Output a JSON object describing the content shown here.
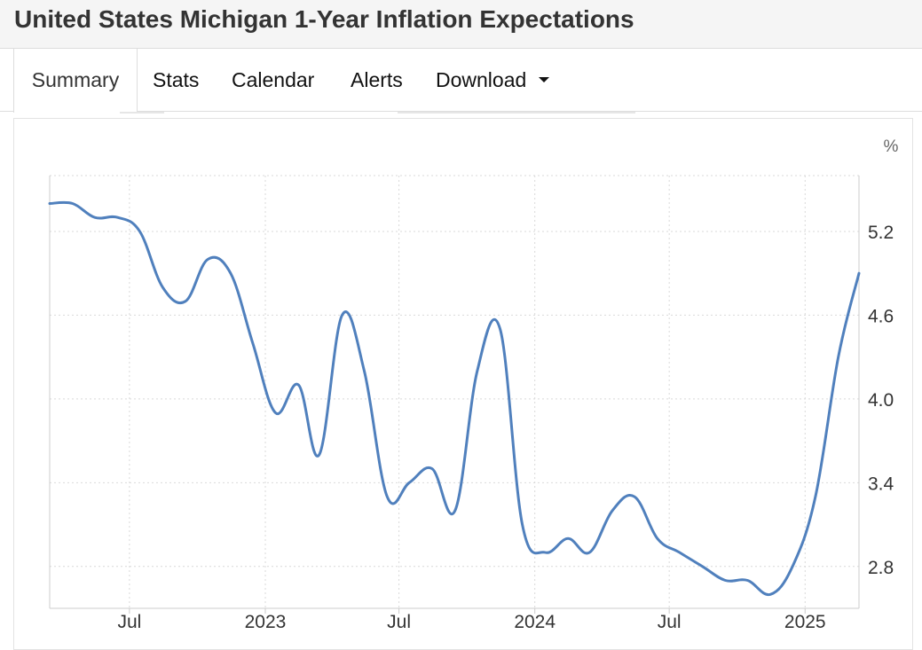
{
  "header": {
    "title": "United States Michigan 1-Year Inflation Expectations"
  },
  "tabs": [
    {
      "label": "Summary",
      "active": true
    },
    {
      "label": "Stats"
    },
    {
      "label": "Calendar"
    },
    {
      "label": "Alerts"
    },
    {
      "label": "Download",
      "dropdown": true
    }
  ],
  "colors": {
    "line": "#5080bd",
    "grid": "#d9d9d9",
    "axis": "#cccccc"
  },
  "chart_data": {
    "type": "line",
    "title": "",
    "xlabel": "",
    "ylabel": "",
    "unit": "%",
    "y_axis_position": "right",
    "ylim": [
      2.5,
      5.6
    ],
    "xlim": [
      "2022-03-15",
      "2025-03-15"
    ],
    "yticks": [
      "2.8",
      "3.4",
      "4.0",
      "4.6",
      "5.2"
    ],
    "xticks": [
      {
        "label": "Jul",
        "date": "2022-07-01"
      },
      {
        "label": "2023",
        "date": "2023-01-01"
      },
      {
        "label": "Jul",
        "date": "2023-07-01"
      },
      {
        "label": "2024",
        "date": "2024-01-01"
      },
      {
        "label": "Jul",
        "date": "2024-07-01"
      },
      {
        "label": "2025",
        "date": "2025-01-01"
      }
    ],
    "grid": true,
    "series": [
      {
        "values": [
          {
            "x": "2022-03-15",
            "y": 5.4
          },
          {
            "x": "2022-04-15",
            "y": 5.4
          },
          {
            "x": "2022-05-15",
            "y": 5.3
          },
          {
            "x": "2022-06-15",
            "y": 5.3
          },
          {
            "x": "2022-07-15",
            "y": 5.2
          },
          {
            "x": "2022-08-15",
            "y": 4.8
          },
          {
            "x": "2022-09-15",
            "y": 4.7
          },
          {
            "x": "2022-10-15",
            "y": 5.0
          },
          {
            "x": "2022-11-15",
            "y": 4.9
          },
          {
            "x": "2022-12-15",
            "y": 4.4
          },
          {
            "x": "2023-01-15",
            "y": 3.9
          },
          {
            "x": "2023-02-15",
            "y": 4.1
          },
          {
            "x": "2023-03-15",
            "y": 3.6
          },
          {
            "x": "2023-04-15",
            "y": 4.6
          },
          {
            "x": "2023-05-15",
            "y": 4.2
          },
          {
            "x": "2023-06-15",
            "y": 3.3
          },
          {
            "x": "2023-07-15",
            "y": 3.4
          },
          {
            "x": "2023-08-15",
            "y": 3.5
          },
          {
            "x": "2023-09-15",
            "y": 3.2
          },
          {
            "x": "2023-10-15",
            "y": 4.2
          },
          {
            "x": "2023-11-15",
            "y": 4.5
          },
          {
            "x": "2023-12-15",
            "y": 3.1
          },
          {
            "x": "2024-01-15",
            "y": 2.9
          },
          {
            "x": "2024-02-15",
            "y": 3.0
          },
          {
            "x": "2024-03-15",
            "y": 2.9
          },
          {
            "x": "2024-04-15",
            "y": 3.2
          },
          {
            "x": "2024-05-15",
            "y": 3.3
          },
          {
            "x": "2024-06-15",
            "y": 3.0
          },
          {
            "x": "2024-07-15",
            "y": 2.9
          },
          {
            "x": "2024-08-15",
            "y": 2.8
          },
          {
            "x": "2024-09-15",
            "y": 2.7
          },
          {
            "x": "2024-10-15",
            "y": 2.7
          },
          {
            "x": "2024-11-15",
            "y": 2.6
          },
          {
            "x": "2024-12-15",
            "y": 2.8
          },
          {
            "x": "2025-01-15",
            "y": 3.3
          },
          {
            "x": "2025-02-15",
            "y": 4.3
          },
          {
            "x": "2025-03-15",
            "y": 4.9
          }
        ]
      }
    ]
  }
}
